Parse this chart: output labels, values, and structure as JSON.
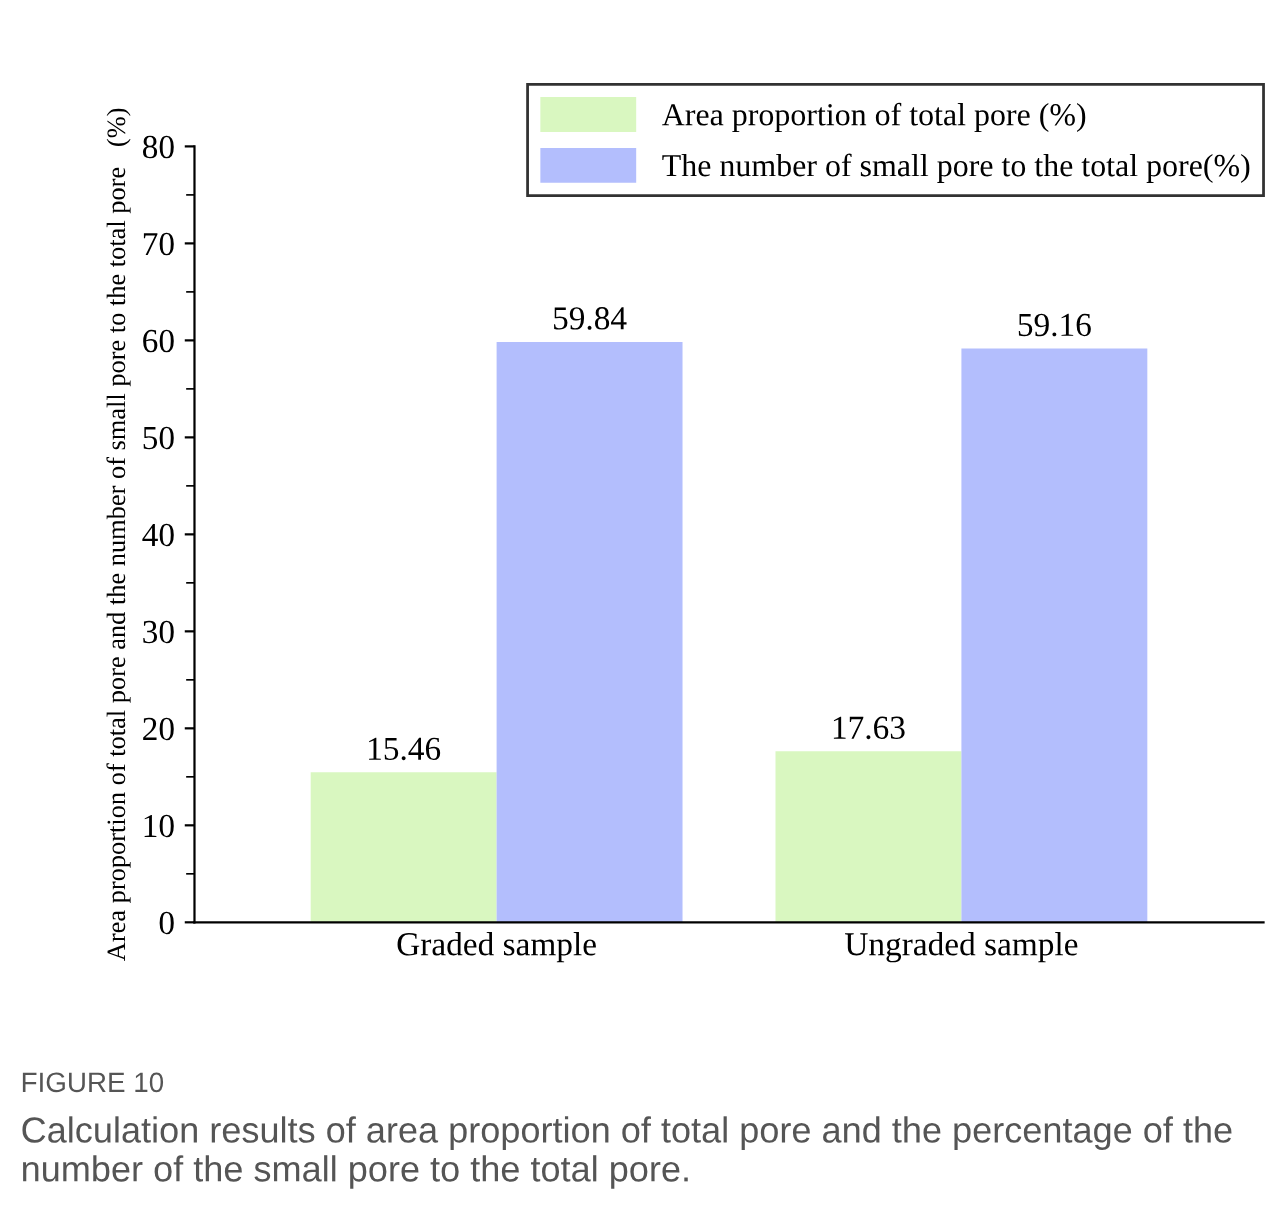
{
  "chart_data": {
    "type": "bar",
    "ylabel": "Area proportion of total pore and the number of small pore to the total pore   (%)",
    "categories": [
      "Graded sample",
      "Ungraded sample"
    ],
    "series": [
      {
        "name": "Area proportion of total pore (%)",
        "color": "#d9f7c0",
        "values": [
          15.46,
          17.63
        ]
      },
      {
        "name": "The number of small pore to the total pore(%)",
        "color": "#b3befd",
        "values": [
          59.84,
          59.16
        ]
      }
    ],
    "ylim": [
      0,
      80
    ],
    "yticks": [
      0,
      10,
      20,
      30,
      40,
      50,
      60,
      70,
      80
    ],
    "data_labels": true,
    "legend": "top right",
    "grid": false,
    "annotations": [
      "FIGURE 10",
      "Calculation results of area proportion of total pore and the percentage of the number of the small pore to the total pore."
    ]
  }
}
